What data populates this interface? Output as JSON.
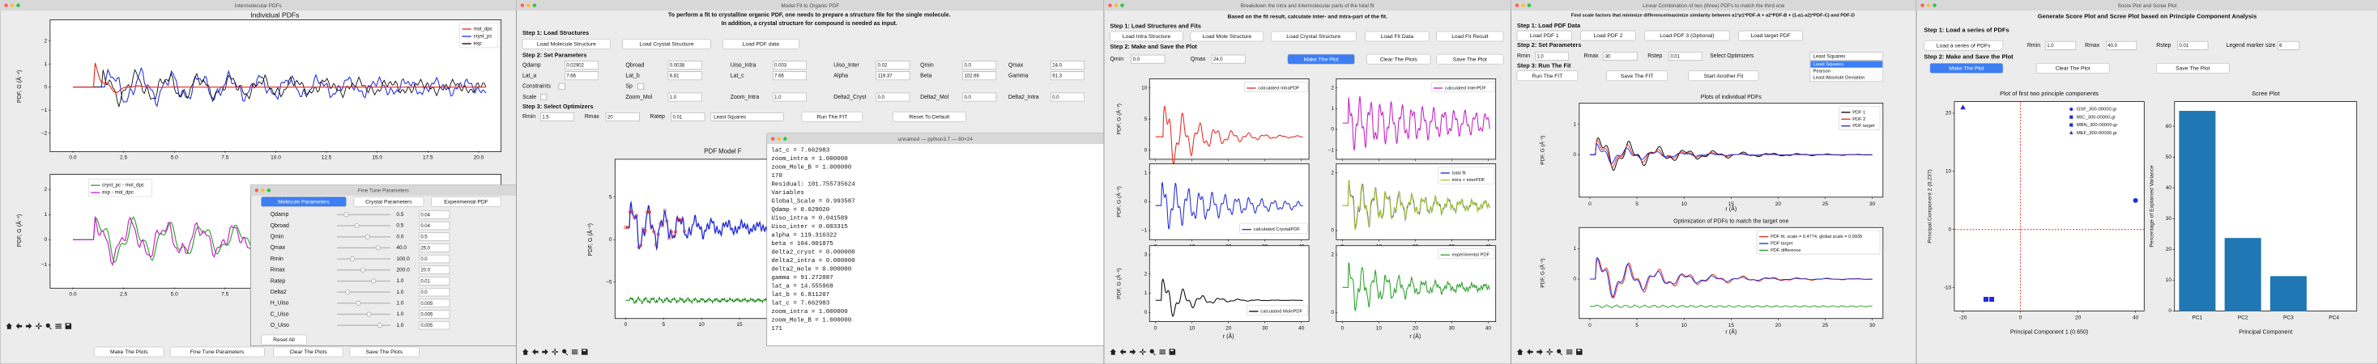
{
  "w1": {
    "title": "Intermolecular PDFs",
    "top": {
      "title": "Individual PDFs",
      "ylabel": "PDF, G (Å⁻²)",
      "xticks": [
        "0.0",
        "2.5",
        "5.0",
        "7.5",
        "10.0",
        "12.5",
        "15.0",
        "17.5",
        "20.0"
      ],
      "yticks": [
        "2",
        "1",
        "0",
        "−1",
        "−2"
      ],
      "legend": [
        "mol_dpc",
        "cryst_pc",
        "exp"
      ],
      "colors": [
        "#e8261d",
        "#1f2ad8",
        "#000000"
      ]
    },
    "bottom": {
      "ylabel": "PDF, G (Å⁻²)",
      "xticks": [
        "0.0",
        "2.5",
        "5.0",
        "7.5"
      ],
      "yticks": [
        "2",
        "1",
        "0",
        "−1"
      ],
      "legend": [
        "cryst_pc - mol_dpc",
        "exp - mol_dpc"
      ],
      "colors": [
        "#2ca02c",
        "#c51bc5"
      ]
    },
    "buttons": [
      "Make The Plots",
      "Fine Tune Parameters",
      "Clear The Plots",
      "Save The Plots"
    ]
  },
  "fine": {
    "title": "Fine Tune Parameters",
    "tabs": [
      "Molecule Parameters",
      "Crystal Parameters",
      "Experimental PDF"
    ],
    "rows": [
      [
        "Qdamp",
        "0.5",
        "0.04"
      ],
      [
        "Qbroad",
        "0.5",
        "0.04"
      ],
      [
        "Qmin",
        "0.0",
        "0.5"
      ],
      [
        "Qmax",
        "40.0",
        "25.0"
      ],
      [
        "Rmin",
        "100.0",
        "0.0"
      ],
      [
        "Rmax",
        "200.0",
        "20.0"
      ],
      [
        "Ratep",
        "1.0",
        "0.01"
      ],
      [
        "Delta2",
        "1.0",
        "0.0"
      ],
      [
        "H_Uiso",
        "1.0",
        "0.005"
      ],
      [
        "C_Uiso",
        "1.0",
        "0.005"
      ],
      [
        "O_Uiso",
        "1.0",
        "0.005"
      ]
    ],
    "reset": "Reset All"
  },
  "w2": {
    "title": "Model Fit to Organic PDF",
    "header": [
      "To perform a fit to crystalline organic PDF, one needs to prepare a structure file for the single molecule.",
      "In addition, a crystal structure for compound is needed as input."
    ],
    "step1": "Step 1: Load Structures",
    "load_buttons": [
      "Load Molecule Structure",
      "Load Crystal Structure",
      "Load PDF data"
    ],
    "step2": "Step 2: Set Parameters",
    "params": [
      [
        [
          "Qdamp",
          "0.02902"
        ],
        [
          "Qbroad",
          "0.0038"
        ],
        [
          "Uiso_Intra",
          "0.003"
        ],
        [
          "Uiso_Inter",
          "0.02"
        ],
        [
          "Qmin",
          "0.0"
        ],
        [
          "Qmax",
          "24.0"
        ]
      ],
      [
        [
          "Lat_a",
          "7.66"
        ],
        [
          "Lat_b",
          "6.81"
        ],
        [
          "Lat_c",
          "7.66"
        ],
        [
          "Alpha",
          "119.37"
        ],
        [
          "Beta",
          "102.66"
        ],
        [
          "Gamma",
          "91.3"
        ]
      ]
    ],
    "checks": [
      "Constraints",
      "Sp"
    ],
    "scale": "Scale",
    "params2": [
      [
        "Zoom_Mol",
        "1.0"
      ],
      [
        "Zoom_Intra",
        "1.0"
      ],
      [
        "Delta2_Cryst",
        "0.0"
      ],
      [
        "Delta2_Mol",
        "0.0"
      ],
      [
        "Delta2_Intra",
        "0.0"
      ]
    ],
    "step3": "Step 3: Select Optimizers",
    "fit": [
      [
        "Rmin",
        "1.5"
      ],
      [
        "Rmax",
        "20"
      ],
      [
        "Ratep",
        "0.01"
      ]
    ],
    "optimizer": "Least Squares",
    "run": "Run The FIT",
    "reset": "Reset To Default",
    "plot": {
      "title": "PDF Model F",
      "ylabel": "PDF, G (Å⁻²)",
      "xticks": [
        "0",
        "5",
        "10",
        "15"
      ],
      "yticks": [
        "5",
        "0",
        "−5"
      ]
    }
  },
  "term": {
    "title": "unnamed — python3.7 — 80×24",
    "lines": [
      "lat_c = 7.662983",
      "zoom_intra = 1.000000",
      "zoom_Mole_B = 1.000000",
      "170",
      "Residual: 101.755735624",
      "Variables",
      "Global_Scale = 0.993587",
      "Qdamp = 0.029020",
      "Uiso_intra = 0.041589",
      "Uiso_inter = 0.003315",
      "alpha = 119.316322",
      "beta = 104.001875",
      "delta2_cryst = 0.000000",
      "delta2_intra = 0.000000",
      "delta2_mole = 0.000000",
      "gamma = 91.272087",
      "lat_a = 14.555968",
      "lat_b = 6.811207",
      "lat_c = 7.662983",
      "zoom_intra = 1.000000",
      "zoom_Mole_B = 1.000000",
      "171"
    ]
  },
  "w3": {
    "title": "Breakdown the intra and intermolecular parts of the total fit",
    "header": "Based on the fit result, calculate inter- and intra-part of the fit.",
    "step1": "Step 1: Load Structures and Fits",
    "buttons1": [
      "Load Intra Structure",
      "Load Mole Structure",
      "Load Crystal Structure",
      "Load Fit Data",
      "Load Fit Result"
    ],
    "step2": "Step 2: Make and Save the Plot",
    "params": [
      [
        "Qmin",
        "0.0"
      ],
      [
        "Qmax",
        "24.0"
      ]
    ],
    "buttons2": [
      "Make The Plot",
      "Clear The Plots",
      "Save The Plot"
    ],
    "ylabel": "PDF, G (Å⁻²)",
    "xlabel": "r (Å)",
    "xticks": [
      "0",
      "10",
      "20",
      "30",
      "40"
    ],
    "panels": [
      {
        "legend": [
          "calculated IntraPDF"
        ],
        "colors": [
          "#e8261d"
        ],
        "yticks": [
          "10",
          "5",
          "0"
        ]
      },
      {
        "legend": [
          "calculated InterPDF"
        ],
        "colors": [
          "#c51bc5"
        ],
        "yticks": [
          "2",
          "1",
          "0",
          "−1"
        ]
      },
      {
        "legend": [
          "calculated CrystalPDF"
        ],
        "colors": [
          "#1f2ad8"
        ],
        "yticks": [
          "1",
          "0",
          "−1"
        ]
      },
      {
        "legend": [
          "total fit",
          "intra + interPDF"
        ],
        "colors": [
          "#1f2ad8",
          "#a8c81e"
        ],
        "yticks": [
          "2",
          "0"
        ]
      },
      {
        "legend": [
          "calculated MolePDF"
        ],
        "colors": [
          "#000000"
        ],
        "yticks": [
          "3",
          "2",
          "1",
          "0"
        ]
      },
      {
        "legend": [
          "experimental PDF"
        ],
        "colors": [
          "#2ca02c"
        ],
        "yticks": [
          "2",
          "0"
        ]
      }
    ]
  },
  "w4": {
    "title": "Linear Combination of two (three) PDFs to match the third one",
    "header": "Find scale factors that minimize difference/maximize similarity between a1*p1*PDF-A + a2*PDF-B + (1-a1-a2)*PDF-C) and PDF-D",
    "step1": "Step 1: Load PDF Data",
    "buttons1": [
      "Load PDF 1",
      "Load PDF 2",
      "Load PDF 3 (Optional)",
      "Load target PDF"
    ],
    "step2": "Step 2: Set Parameters",
    "params": [
      [
        "Rmin",
        "1.0"
      ],
      [
        "Rmax",
        "30"
      ],
      [
        "Rstep",
        "0.01"
      ]
    ],
    "optimizer_label": "Select Optimizers",
    "optimizer": "Least Squares",
    "options": [
      "Least Squares",
      "Pearson",
      "Least Absolute Deviation"
    ],
    "step3": "Step 3: Run The Fit",
    "buttons3": [
      "Run The FIT",
      "Save The FIT",
      "Start Another Fit"
    ],
    "xlabel": "r (Å)",
    "ylabel": "PDF, G (Å⁻²)",
    "xticks": [
      "0",
      "5",
      "10",
      "15",
      "20",
      "25",
      "30"
    ],
    "plots": [
      {
        "title": "Plots of individual PDFs",
        "legend": [
          "PDF 1",
          "PDF 2",
          "PDF target"
        ],
        "colors": [
          "#000000",
          "#e8261d",
          "#1f2ad8"
        ],
        "yticks": [
          "1",
          "0"
        ]
      },
      {
        "title": "Optimization of PDFs to match the target one",
        "legend": [
          "PDF fit, scale = 0.4774, global scale = 0.9935",
          "PDF target",
          "PDF difference"
        ],
        "colors": [
          "#e8261d",
          "#1f2ad8",
          "#2ca02c"
        ],
        "yticks": [
          "1",
          "0"
        ]
      }
    ]
  },
  "w5": {
    "title": "Score Plot and Scree Plot",
    "header": "Generate Score Plot and Scree Plot based on Principle Component Analysis",
    "step1": "Step 1: Load a series of PDFs",
    "load": "Load a series of PDFs",
    "params": [
      [
        "Rmin",
        "1.0"
      ],
      [
        "Rmax",
        "40.0"
      ],
      [
        "Rstep",
        "0.01"
      ],
      [
        "Legend marker size",
        "6"
      ]
    ],
    "step2": "Step 2: Make and Save the Plot",
    "buttons": [
      "Make The Plot",
      "Clear The Plot",
      "Save The Plot"
    ],
    "score": {
      "type": "scatter",
      "title": "Plot of first two principle components",
      "xlabel": "Principal Component 1 (0.650)",
      "ylabel": "Principal Component 2 (0.237)",
      "xlim": [
        -23,
        43
      ],
      "ylim": [
        -14,
        22
      ],
      "xticks": [
        -20,
        0,
        20,
        40
      ],
      "yticks": [
        -10,
        0,
        10,
        20
      ],
      "series": [
        {
          "name": "GSF_300-00000.gr",
          "color": "#1f2ad8",
          "marker": "circle",
          "x": [
            40
          ],
          "y": [
            5
          ]
        },
        {
          "name": "MIC_300-00000.gr",
          "color": "#1f2ad8",
          "marker": "square",
          "x": [
            -12
          ],
          "y": [
            -12
          ]
        },
        {
          "name": "MBN_300-00000.gr",
          "color": "#1f2ad8",
          "marker": "square",
          "x": [
            -10
          ],
          "y": [
            -12
          ]
        },
        {
          "name": "MEF_300-00000.gr",
          "color": "#1f2ad8",
          "marker": "triangle",
          "x": [
            -20
          ],
          "y": [
            21
          ]
        }
      ]
    },
    "scree": {
      "type": "bar",
      "title": "Scree Plot",
      "xlabel": "Principal Component",
      "ylabel": "Percentage of Explained Variance",
      "categories": [
        "PC1",
        "PC2",
        "PC3",
        "PC4"
      ],
      "values": [
        65.0,
        23.7,
        11.3,
        0.0
      ],
      "color": "#1f77b4",
      "ylim": [
        0,
        68
      ],
      "yticks": [
        0,
        10,
        20,
        30,
        40,
        50,
        60
      ]
    }
  }
}
